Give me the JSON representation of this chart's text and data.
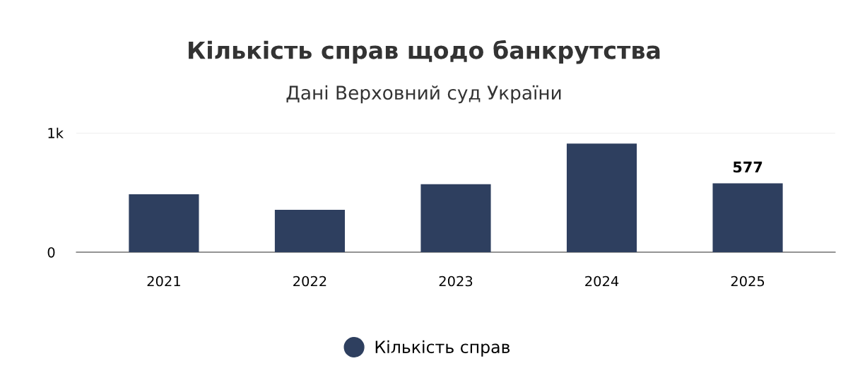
{
  "chart_data": {
    "type": "bar",
    "title": "Кількість справ щодо банкрутства",
    "subtitle": "Дані Верховний суд України",
    "categories": [
      "2021",
      "2022",
      "2023",
      "2024",
      "2025"
    ],
    "series": [
      {
        "name": "Кількість справ",
        "color": "#2e3f5f",
        "values": [
          485,
          355,
          570,
          910,
          577
        ],
        "value_labels": [
          null,
          null,
          null,
          null,
          "577"
        ]
      }
    ],
    "ylim": [
      0,
      1000
    ],
    "yticks": [
      0,
      {
        "value": 1000,
        "label": "1k"
      }
    ],
    "grid": "y",
    "legend": "bottom"
  }
}
